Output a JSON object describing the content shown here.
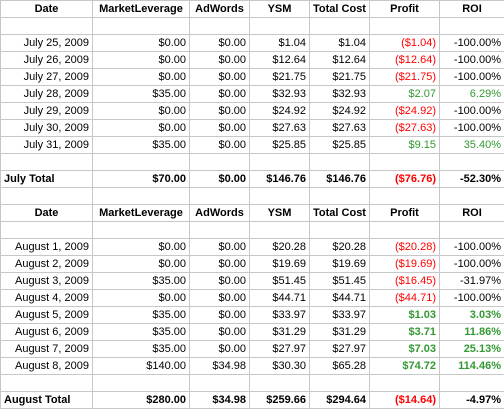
{
  "columns": [
    "Date",
    "MarketLeverage",
    "AdWords",
    "YSM",
    "Total Cost",
    "Profit",
    "ROI"
  ],
  "july": {
    "rows": [
      {
        "date": "July 25, 2009",
        "ml": "$0.00",
        "aw": "$0.00",
        "ysm": "$1.04",
        "cost": "$1.04",
        "profit": "($1.04)",
        "roi": "-100.00%",
        "profit_color": "red",
        "roi_color": "black",
        "bold": false
      },
      {
        "date": "July 26, 2009",
        "ml": "$0.00",
        "aw": "$0.00",
        "ysm": "$12.64",
        "cost": "$12.64",
        "profit": "($12.64)",
        "roi": "-100.00%",
        "profit_color": "red",
        "roi_color": "black",
        "bold": false
      },
      {
        "date": "July 27, 2009",
        "ml": "$0.00",
        "aw": "$0.00",
        "ysm": "$21.75",
        "cost": "$21.75",
        "profit": "($21.75)",
        "roi": "-100.00%",
        "profit_color": "red",
        "roi_color": "black",
        "bold": false
      },
      {
        "date": "July 28, 2009",
        "ml": "$35.00",
        "aw": "$0.00",
        "ysm": "$32.93",
        "cost": "$32.93",
        "profit": "$2.07",
        "roi": "6.29%",
        "profit_color": "green",
        "roi_color": "green",
        "bold": false
      },
      {
        "date": "July 29, 2009",
        "ml": "$0.00",
        "aw": "$0.00",
        "ysm": "$24.92",
        "cost": "$24.92",
        "profit": "($24.92)",
        "roi": "-100.00%",
        "profit_color": "red",
        "roi_color": "black",
        "bold": false
      },
      {
        "date": "July 30, 2009",
        "ml": "$0.00",
        "aw": "$0.00",
        "ysm": "$27.63",
        "cost": "$27.63",
        "profit": "($27.63)",
        "roi": "-100.00%",
        "profit_color": "red",
        "roi_color": "black",
        "bold": false
      },
      {
        "date": "July 31, 2009",
        "ml": "$35.00",
        "aw": "$0.00",
        "ysm": "$25.85",
        "cost": "$25.85",
        "profit": "$9.15",
        "roi": "35.40%",
        "profit_color": "green",
        "roi_color": "green",
        "bold": false
      }
    ],
    "total": {
      "label": "July Total",
      "ml": "$70.00",
      "aw": "$0.00",
      "ysm": "$146.76",
      "cost": "$146.76",
      "profit": "($76.76)",
      "roi": "-52.30%",
      "profit_color": "red",
      "roi_color": "black"
    }
  },
  "august": {
    "rows": [
      {
        "date": "August 1, 2009",
        "ml": "$0.00",
        "aw": "$0.00",
        "ysm": "$20.28",
        "cost": "$20.28",
        "profit": "($20.28)",
        "roi": "-100.00%",
        "profit_color": "red",
        "roi_color": "black",
        "bold": false
      },
      {
        "date": "August 2, 2009",
        "ml": "$0.00",
        "aw": "$0.00",
        "ysm": "$19.69",
        "cost": "$19.69",
        "profit": "($19.69)",
        "roi": "-100.00%",
        "profit_color": "red",
        "roi_color": "black",
        "bold": false
      },
      {
        "date": "August 3, 2009",
        "ml": "$35.00",
        "aw": "$0.00",
        "ysm": "$51.45",
        "cost": "$51.45",
        "profit": "($16.45)",
        "roi": "-31.97%",
        "profit_color": "red",
        "roi_color": "black",
        "bold": false
      },
      {
        "date": "August 4, 2009",
        "ml": "$0.00",
        "aw": "$0.00",
        "ysm": "$44.71",
        "cost": "$44.71",
        "profit": "($44.71)",
        "roi": "-100.00%",
        "profit_color": "red",
        "roi_color": "black",
        "bold": false
      },
      {
        "date": "August 5, 2009",
        "ml": "$35.00",
        "aw": "$0.00",
        "ysm": "$33.97",
        "cost": "$33.97",
        "profit": "$1.03",
        "roi": "3.03%",
        "profit_color": "green",
        "roi_color": "green",
        "bold": true
      },
      {
        "date": "August 6, 2009",
        "ml": "$35.00",
        "aw": "$0.00",
        "ysm": "$31.29",
        "cost": "$31.29",
        "profit": "$3.71",
        "roi": "11.86%",
        "profit_color": "green",
        "roi_color": "green",
        "bold": true
      },
      {
        "date": "August 7, 2009",
        "ml": "$35.00",
        "aw": "$0.00",
        "ysm": "$27.97",
        "cost": "$27.97",
        "profit": "$7.03",
        "roi": "25.13%",
        "profit_color": "green",
        "roi_color": "green",
        "bold": true
      },
      {
        "date": "August 8, 2009",
        "ml": "$140.00",
        "aw": "$34.98",
        "ysm": "$30.30",
        "cost": "$65.28",
        "profit": "$74.72",
        "roi": "114.46%",
        "profit_color": "green",
        "roi_color": "green",
        "bold": true
      }
    ],
    "total": {
      "label": "August Total",
      "ml": "$280.00",
      "aw": "$34.98",
      "ysm": "$259.66",
      "cost": "$294.64",
      "profit": "($14.64)",
      "roi": "-4.97%",
      "profit_color": "red",
      "roi_color": "black"
    }
  }
}
